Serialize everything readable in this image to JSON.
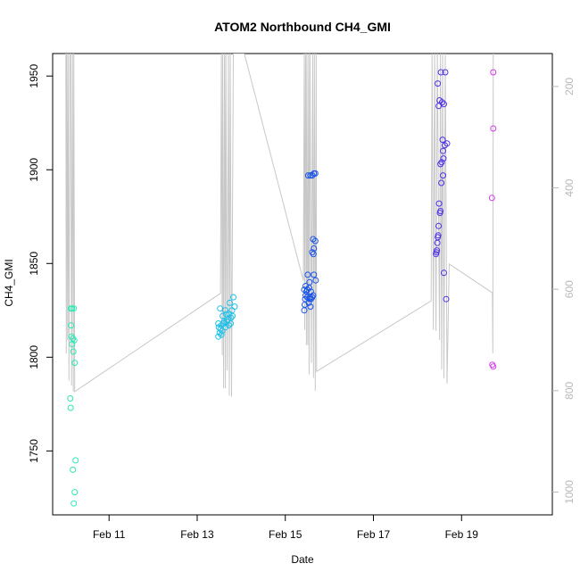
{
  "chart_data": {
    "type": "scatter",
    "title": "ATOM2 Northbound CH4_GMI",
    "xlabel": "Date",
    "ylabel": "CH4_GMI",
    "x_ticks": [
      "Feb 11",
      "Feb 13",
      "Feb 15",
      "Feb 17",
      "Feb 19"
    ],
    "x_tick_values": [
      11,
      13,
      15,
      17,
      19
    ],
    "xlim": [
      9.72,
      21.06
    ],
    "ylim": [
      1715.9,
      1962.0
    ],
    "y_ticks": [
      1750,
      1800,
      1850,
      1900,
      1950
    ],
    "y_ticks_right": [
      200,
      400,
      600,
      800,
      1000
    ],
    "ylim_right": [
      135,
      1045
    ],
    "grid": false,
    "colors": {
      "line": "#c8c8c8",
      "axis": "#000000",
      "right_axis": "#b8b8b8"
    },
    "series": [
      {
        "color": "#2ee8b6",
        "points": [
          [
            10.13,
            1826
          ],
          [
            10.16,
            1826
          ],
          [
            10.2,
            1826
          ],
          [
            10.14,
            1817
          ],
          [
            10.15,
            1811
          ],
          [
            10.18,
            1810
          ],
          [
            10.21,
            1809
          ],
          [
            10.16,
            1807
          ],
          [
            10.19,
            1803
          ],
          [
            10.22,
            1797
          ],
          [
            10.12,
            1778
          ],
          [
            10.13,
            1773
          ],
          [
            10.24,
            1745
          ],
          [
            10.18,
            1740
          ],
          [
            10.22,
            1728
          ],
          [
            10.2,
            1722
          ]
        ]
      },
      {
        "color": "#1fc0e8",
        "points": [
          [
            13.52,
            1826
          ],
          [
            13.64,
            1825
          ],
          [
            13.74,
            1829
          ],
          [
            13.82,
            1832
          ],
          [
            13.58,
            1822
          ],
          [
            13.66,
            1823
          ],
          [
            13.73,
            1823
          ],
          [
            13.79,
            1825
          ],
          [
            13.85,
            1827
          ],
          [
            13.48,
            1818
          ],
          [
            13.55,
            1817
          ],
          [
            13.61,
            1819
          ],
          [
            13.67,
            1819
          ],
          [
            13.7,
            1820
          ],
          [
            13.77,
            1821
          ],
          [
            13.8,
            1822
          ],
          [
            13.49,
            1816
          ],
          [
            13.53,
            1815
          ],
          [
            13.57,
            1814
          ],
          [
            13.64,
            1816
          ],
          [
            13.72,
            1817
          ],
          [
            13.51,
            1813
          ],
          [
            13.55,
            1812
          ],
          [
            13.48,
            1811
          ],
          [
            13.6,
            1818
          ],
          [
            13.76,
            1818
          ]
        ]
      },
      {
        "color": "#1a55e8",
        "points": [
          [
            15.52,
            1897
          ],
          [
            15.57,
            1897
          ],
          [
            15.61,
            1897
          ],
          [
            15.65,
            1898
          ],
          [
            15.68,
            1898
          ],
          [
            15.63,
            1863
          ],
          [
            15.68,
            1862
          ],
          [
            15.65,
            1858
          ],
          [
            15.61,
            1856
          ],
          [
            15.64,
            1855
          ],
          [
            15.51,
            1844
          ],
          [
            15.65,
            1844
          ],
          [
            15.69,
            1841
          ],
          [
            15.55,
            1840
          ],
          [
            15.46,
            1838
          ],
          [
            15.5,
            1836
          ],
          [
            15.54,
            1837
          ],
          [
            15.48,
            1835
          ],
          [
            15.58,
            1835
          ],
          [
            15.43,
            1836
          ],
          [
            15.46,
            1833
          ],
          [
            15.5,
            1832
          ],
          [
            15.56,
            1832
          ],
          [
            15.61,
            1832
          ],
          [
            15.63,
            1833
          ],
          [
            15.45,
            1831
          ],
          [
            15.55,
            1831
          ],
          [
            15.58,
            1831
          ],
          [
            15.44,
            1828
          ],
          [
            15.53,
            1829
          ],
          [
            15.57,
            1827
          ],
          [
            15.43,
            1825
          ]
        ]
      },
      {
        "color": "#5030e8",
        "points": [
          [
            18.46,
            1946
          ],
          [
            18.53,
            1952
          ],
          [
            18.63,
            1952
          ],
          [
            18.5,
            1937
          ],
          [
            18.48,
            1934
          ],
          [
            18.6,
            1935
          ],
          [
            18.56,
            1936
          ],
          [
            18.57,
            1916
          ],
          [
            18.67,
            1914
          ],
          [
            18.62,
            1913
          ],
          [
            18.58,
            1910
          ],
          [
            18.59,
            1906
          ],
          [
            18.55,
            1904
          ],
          [
            18.52,
            1903
          ],
          [
            18.58,
            1897
          ],
          [
            18.54,
            1893
          ],
          [
            18.49,
            1882
          ],
          [
            18.52,
            1878
          ],
          [
            18.51,
            1877
          ],
          [
            18.48,
            1870
          ],
          [
            18.47,
            1865
          ],
          [
            18.46,
            1864
          ],
          [
            18.45,
            1861
          ],
          [
            18.44,
            1857
          ],
          [
            18.42,
            1855
          ],
          [
            18.43,
            1856
          ],
          [
            18.6,
            1845
          ],
          [
            18.65,
            1831
          ]
        ]
      },
      {
        "color": "#d238e8",
        "points": [
          [
            19.72,
            1952
          ],
          [
            19.72,
            1922
          ],
          [
            19.69,
            1885
          ],
          [
            19.7,
            1796
          ],
          [
            19.72,
            1795
          ]
        ]
      }
    ],
    "profile_line_right_axis": [
      [
        10.02,
        135
      ],
      [
        10.03,
        727
      ],
      [
        10.04,
        135
      ],
      [
        10.06,
        700
      ],
      [
        10.07,
        135
      ],
      [
        10.09,
        780
      ],
      [
        10.11,
        135
      ],
      [
        10.13,
        135
      ],
      [
        10.15,
        790
      ],
      [
        10.17,
        135
      ],
      [
        10.19,
        802
      ],
      [
        10.2,
        135
      ],
      [
        10.22,
        802
      ],
      [
        13.53,
        608
      ],
      [
        13.55,
        135
      ],
      [
        13.57,
        730
      ],
      [
        13.58,
        135
      ],
      [
        13.6,
        795
      ],
      [
        13.62,
        135
      ],
      [
        13.64,
        795
      ],
      [
        13.65,
        135
      ],
      [
        13.68,
        760
      ],
      [
        13.71,
        135
      ],
      [
        13.73,
        810
      ],
      [
        13.75,
        135
      ],
      [
        13.78,
        812
      ],
      [
        13.82,
        135
      ],
      [
        13.85,
        135
      ],
      [
        13.89,
        135
      ],
      [
        14.07,
        135
      ],
      [
        15.41,
        583
      ],
      [
        15.43,
        135
      ],
      [
        15.44,
        680
      ],
      [
        15.46,
        135
      ],
      [
        15.48,
        710
      ],
      [
        15.49,
        135
      ],
      [
        15.51,
        710
      ],
      [
        15.53,
        135
      ],
      [
        15.54,
        768
      ],
      [
        15.56,
        135
      ],
      [
        15.59,
        745
      ],
      [
        15.62,
        135
      ],
      [
        15.64,
        775
      ],
      [
        15.66,
        135
      ],
      [
        15.68,
        800
      ],
      [
        15.7,
        135
      ],
      [
        15.71,
        762
      ],
      [
        18.31,
        623
      ],
      [
        18.33,
        135
      ],
      [
        18.36,
        680
      ],
      [
        18.39,
        135
      ],
      [
        18.42,
        682
      ],
      [
        18.45,
        135
      ],
      [
        18.5,
        700
      ],
      [
        18.52,
        135
      ],
      [
        18.55,
        758
      ],
      [
        18.57,
        135
      ],
      [
        18.6,
        775
      ],
      [
        18.63,
        135
      ],
      [
        18.67,
        786
      ],
      [
        18.72,
        550
      ],
      [
        19.7,
        607
      ],
      [
        19.71,
        726
      ],
      [
        19.72,
        135
      ]
    ]
  }
}
